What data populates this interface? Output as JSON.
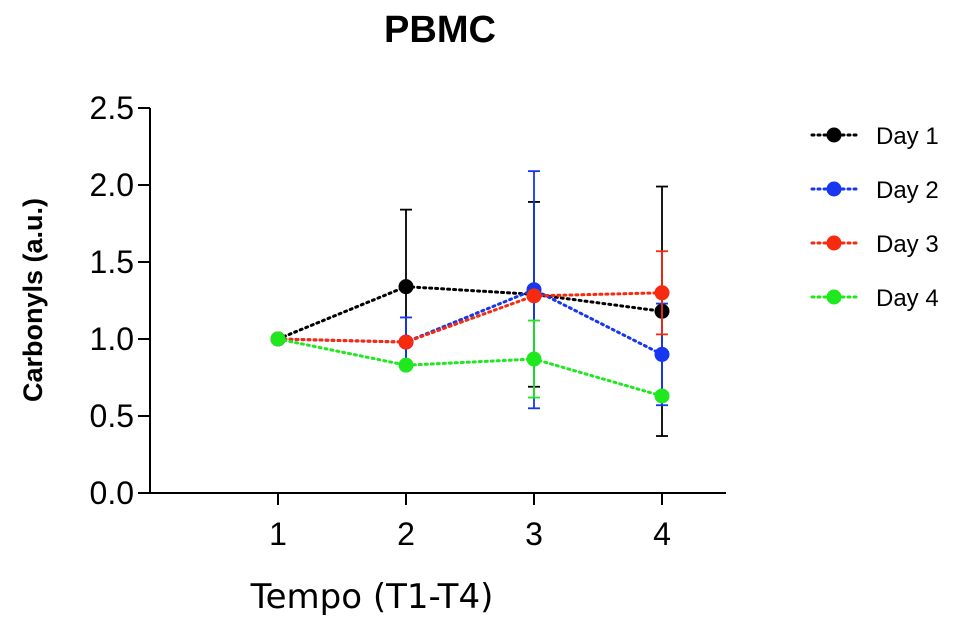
{
  "chart_data": {
    "type": "line",
    "title": "PBMC",
    "xlabel": "Tempo (T1-T4)",
    "ylabel": "Carbonyls (a.u.)",
    "x": [
      1,
      2,
      3,
      4
    ],
    "x_tick_labels": [
      "1",
      "2",
      "3",
      "4"
    ],
    "xlim": [
      0.0,
      4.5
    ],
    "ylim": [
      0,
      2.5
    ],
    "y_ticks": [
      0,
      0.5,
      1,
      1.5,
      2,
      2.5
    ],
    "y_tick_labels": [
      "0.0",
      "0.5",
      "1.0",
      "1.5",
      "2.0",
      "2.5"
    ],
    "grid": false,
    "legend_position": "right",
    "series": [
      {
        "name": "Day 1",
        "color": "#000000",
        "values": [
          1.0,
          1.34,
          1.29,
          1.18
        ],
        "error": [
          0,
          0.5,
          0.6,
          0.81
        ]
      },
      {
        "name": "Day 2",
        "color": "#1636f0",
        "values": [
          1.0,
          0.98,
          1.32,
          0.9
        ],
        "error": [
          0,
          0.16,
          0.77,
          0.33
        ]
      },
      {
        "name": "Day 3",
        "color": "#f52a0f",
        "values": [
          1.0,
          0.98,
          1.28,
          1.3
        ],
        "error": [
          0,
          0,
          0,
          0.27
        ]
      },
      {
        "name": "Day 4",
        "color": "#1fe81f",
        "values": [
          1.0,
          0.83,
          0.87,
          0.63
        ],
        "error": [
          0,
          0,
          0.25,
          0
        ]
      }
    ]
  }
}
